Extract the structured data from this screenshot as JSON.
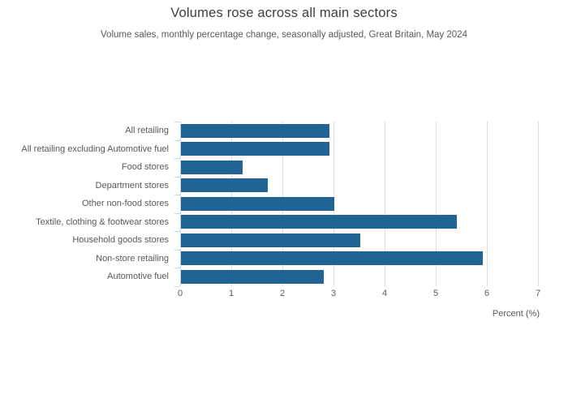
{
  "title": "Volumes rose across all main sectors",
  "subtitle": "Volume sales, monthly percentage change, seasonally adjusted, Great Britain, May 2024",
  "chart_data": {
    "type": "bar",
    "orientation": "horizontal",
    "title": "Volumes rose across all main sectors",
    "subtitle": "Volume sales, monthly percentage change, seasonally adjusted, Great Britain, May 2024",
    "categories": [
      "All retailing",
      "All retailing excluding Automotive fuel",
      "Food stores",
      "Department stores",
      "Other non-food stores",
      "Textile, clothing & footwear stores",
      "Household goods stores",
      "Non-store retailing",
      "Automotive fuel"
    ],
    "values": [
      2.9,
      2.9,
      1.2,
      1.7,
      3.0,
      5.4,
      3.5,
      5.9,
      2.8
    ],
    "xlabel": "Percent (%)",
    "ylabel": "",
    "xlim": [
      0,
      7
    ],
    "xticks": [
      0,
      1,
      2,
      3,
      4,
      5,
      6,
      7
    ],
    "grid": true,
    "legend": false,
    "bar_color": "#216395",
    "gridline_color": "#dcdcdc",
    "axis_line_color": "#ccd6ea",
    "label_color": "#58595b"
  }
}
